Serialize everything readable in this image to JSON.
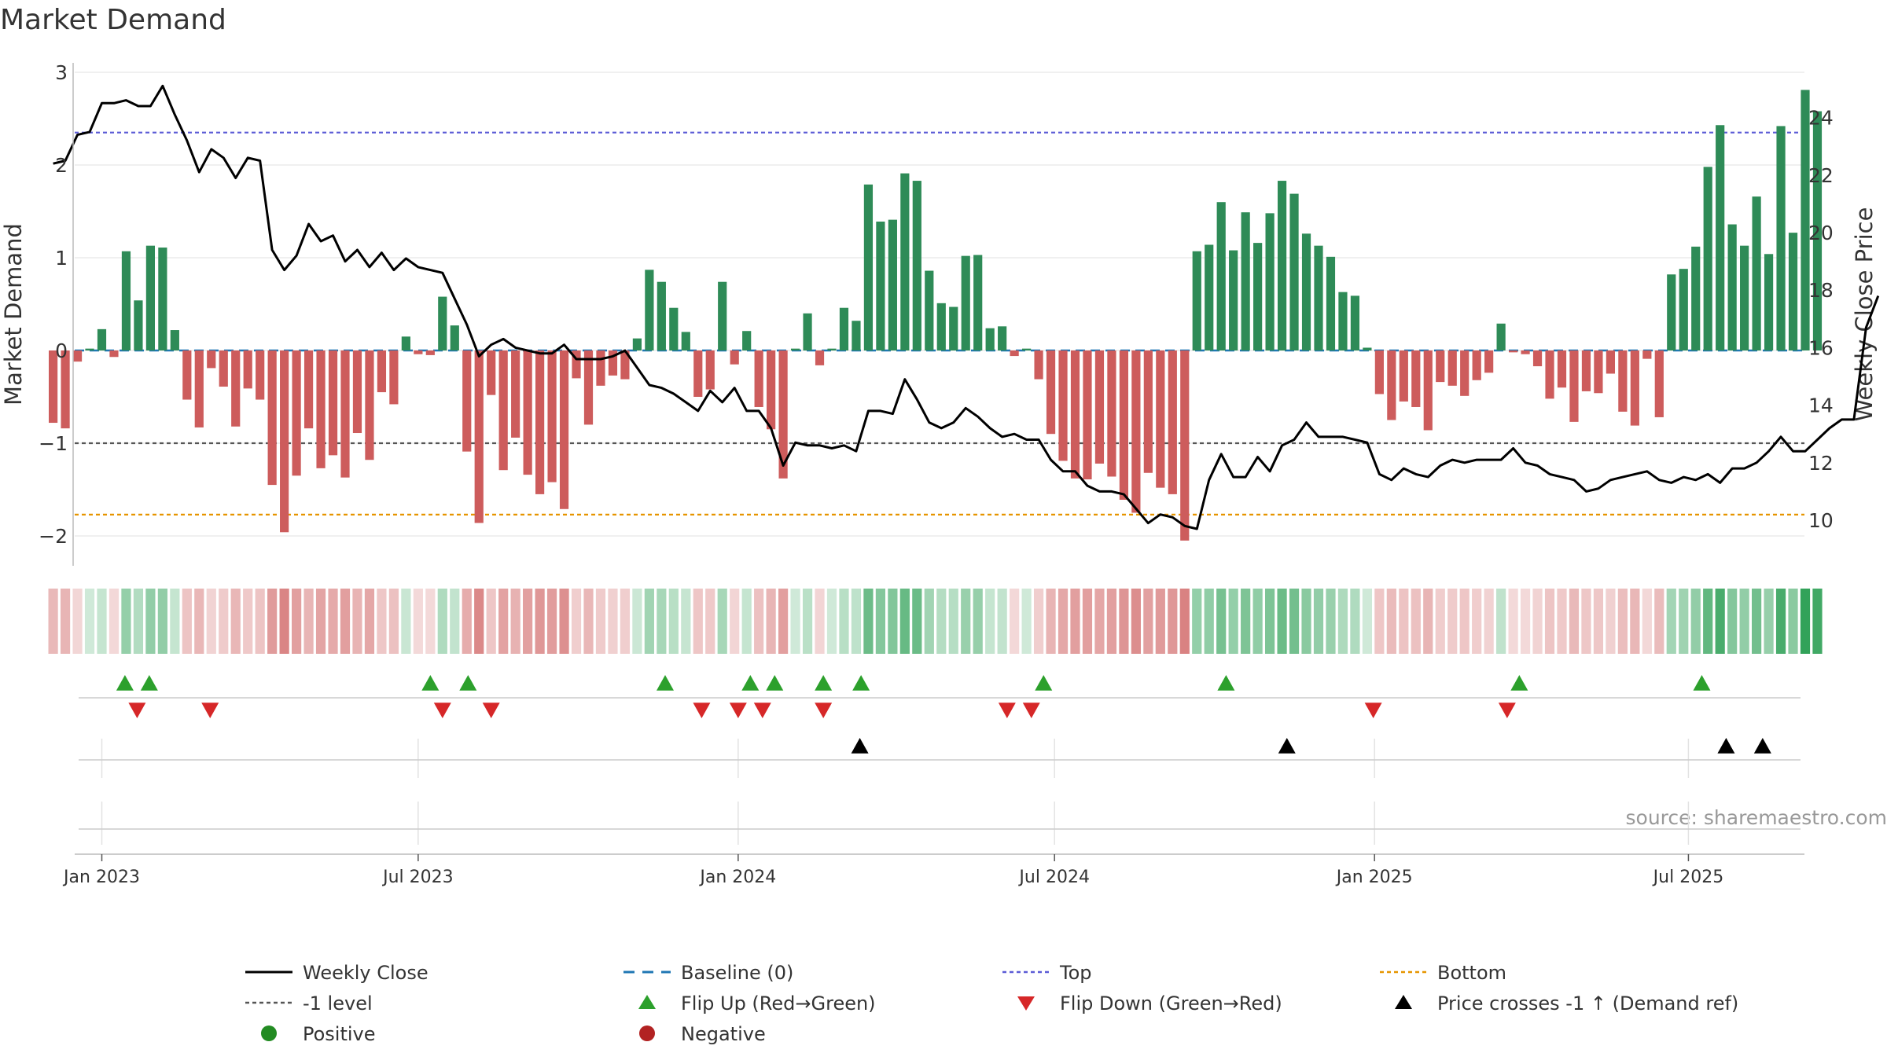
{
  "chart_data": {
    "type": "bar",
    "title": "Market Demand",
    "ylabel": "Market Demand",
    "y2label": "Weekly Close Price",
    "ylim": [
      -2.3,
      3.05
    ],
    "y2lim": [
      9.2,
      25.4
    ],
    "yticks": [
      3,
      2,
      1,
      0,
      -1,
      -2
    ],
    "y2ticks": [
      10,
      12,
      14,
      16,
      18,
      20,
      22,
      24
    ],
    "xticks": [
      {
        "label": "Jan 2023",
        "week": 0
      },
      {
        "label": "Jul 2023",
        "week": 26
      },
      {
        "label": "Jan 2024",
        "week": 52.3
      },
      {
        "label": "Jul 2024",
        "week": 78.3
      },
      {
        "label": "Jan 2025",
        "week": 104.6
      },
      {
        "label": "Jul 2025",
        "week": 130.4
      }
    ],
    "week_range": [
      -2.2,
      142.3
    ],
    "levels": {
      "top": 2.35,
      "minus_one": -1.0,
      "bottom": -1.77,
      "baseline": 0
    },
    "colors": {
      "positive": "#2e8b57",
      "negative": "#cd5c5c",
      "close": "#000000",
      "top": "#5b5bd6",
      "bottom": "#e69500",
      "minus_one": "#555555",
      "baseline": "#1f77b4",
      "flip_up": "#2ca02c",
      "flip_down": "#d62728"
    },
    "series": [
      {
        "name": "Market Demand",
        "values": [
          -0.78,
          -0.84,
          -0.12,
          0.02,
          0.23,
          -0.07,
          1.07,
          0.54,
          1.13,
          1.11,
          0.22,
          -0.53,
          -0.83,
          -0.19,
          -0.39,
          -0.82,
          -0.41,
          -0.53,
          -1.45,
          -1.96,
          -1.35,
          -0.84,
          -1.27,
          -1.13,
          -1.37,
          -0.89,
          -1.18,
          -0.45,
          -0.58,
          0.15,
          -0.04,
          -0.05,
          0.58,
          0.27,
          -1.09,
          -1.86,
          -0.48,
          -1.29,
          -0.94,
          -1.34,
          -1.55,
          -1.42,
          -1.71,
          -0.3,
          -0.8,
          -0.38,
          -0.27,
          -0.31,
          0.13,
          0.87,
          0.74,
          0.46,
          0.2,
          -0.5,
          -0.42,
          0.74,
          -0.15,
          0.21,
          -0.61,
          -0.85,
          -1.38,
          0.02,
          0.4,
          -0.16,
          0.02,
          0.46,
          0.32,
          1.79,
          1.39,
          1.41,
          1.91,
          1.83,
          0.86,
          0.51,
          0.47,
          1.02,
          1.03,
          0.24,
          0.26,
          -0.06,
          0.02,
          -0.31,
          -0.9,
          -1.19,
          -1.38,
          -1.39,
          -1.22,
          -1.36,
          -1.61,
          -1.75,
          -1.32,
          -1.48,
          -1.55,
          -2.05,
          1.07,
          1.14,
          1.6,
          1.08,
          1.49,
          1.16,
          1.48,
          1.83,
          1.69,
          1.26,
          1.13,
          1.01,
          0.63,
          0.59,
          0.03,
          -0.47,
          -0.75,
          -0.55,
          -0.61,
          -0.86,
          -0.34,
          -0.38,
          -0.49,
          -0.32,
          -0.24,
          0.29,
          -0.02,
          -0.04,
          -0.17,
          -0.52,
          -0.4,
          -0.77,
          -0.44,
          -0.46,
          -0.25,
          -0.66,
          -0.81,
          -0.09,
          -0.72,
          0.82,
          0.88,
          1.12,
          1.98,
          2.43,
          1.36,
          1.13,
          1.66,
          1.04,
          2.42,
          1.27,
          2.81,
          2.58
        ]
      },
      {
        "name": "Weekly Close",
        "values": [
          22.4,
          22.5,
          23.4,
          23.5,
          24.5,
          24.5,
          24.6,
          24.4,
          24.4,
          25.1,
          24.1,
          23.2,
          22.1,
          22.9,
          22.6,
          21.9,
          22.6,
          22.5,
          19.4,
          18.7,
          19.2,
          20.3,
          19.7,
          19.9,
          19.0,
          19.4,
          18.8,
          19.3,
          18.7,
          19.1,
          18.8,
          18.7,
          18.6,
          17.7,
          16.8,
          15.7,
          16.1,
          16.3,
          16.0,
          15.9,
          15.8,
          15.8,
          16.1,
          15.6,
          15.6,
          15.6,
          15.7,
          15.9,
          15.3,
          14.7,
          14.6,
          14.4,
          14.1,
          13.8,
          14.5,
          14.1,
          14.6,
          13.8,
          13.8,
          13.2,
          11.9,
          12.7,
          12.6,
          12.6,
          12.5,
          12.6,
          12.4,
          13.8,
          13.8,
          13.7,
          14.9,
          14.2,
          13.4,
          13.2,
          13.4,
          13.9,
          13.6,
          13.2,
          12.9,
          13.0,
          12.8,
          12.8,
          12.1,
          11.7,
          11.7,
          11.2,
          11.0,
          11.0,
          10.9,
          10.4,
          9.9,
          10.2,
          10.1,
          9.8,
          9.7,
          11.4,
          12.3,
          11.5,
          11.5,
          12.2,
          11.7,
          12.6,
          12.8,
          13.4,
          12.9,
          12.9,
          12.9,
          12.8,
          12.7,
          11.6,
          11.4,
          11.8,
          11.6,
          11.5,
          11.9,
          12.1,
          12.0,
          12.1,
          12.1,
          12.1,
          12.5,
          12.0,
          11.9,
          11.6,
          11.5,
          11.4,
          11.0,
          11.1,
          11.4,
          11.5,
          11.6,
          11.7,
          11.4,
          11.3,
          11.5,
          11.4,
          11.6,
          11.3,
          11.8,
          11.8,
          12.0,
          12.4,
          12.9,
          12.4,
          12.4,
          12.8,
          13.2,
          13.5,
          13.5,
          16.7,
          17.8
        ]
      }
    ],
    "flip_up_weeks": [
      1.9,
      3.9,
      27.0,
      30.1,
      46.3,
      53.3,
      55.3,
      59.3,
      62.4,
      77.4,
      92.4,
      116.5,
      131.5
    ],
    "flip_down_weeks": [
      2.9,
      8.9,
      28.0,
      32.0,
      49.3,
      52.3,
      54.3,
      59.3,
      74.4,
      76.4,
      104.5,
      115.5
    ],
    "price_cross_weeks": [
      62.3,
      97.4,
      133.5,
      136.5
    ],
    "legend": [
      {
        "label": "Weekly Close",
        "symbol": "line-solid",
        "color": "#000000"
      },
      {
        "label": "Baseline (0)",
        "symbol": "line-dashed",
        "color": "#1f77b4"
      },
      {
        "label": "Top",
        "symbol": "line-dotted",
        "color": "#5b5bd6"
      },
      {
        "label": "Bottom",
        "symbol": "line-dotted",
        "color": "#e69500"
      },
      {
        "label": "-1 level",
        "symbol": "line-dotted",
        "color": "#555555"
      },
      {
        "label": "Flip Up (Red→Green)",
        "symbol": "triangle-up",
        "color": "#2ca02c"
      },
      {
        "label": "Flip Down (Green→Red)",
        "symbol": "triangle-down",
        "color": "#d62728"
      },
      {
        "label": "Price crosses -1 ↑ (Demand ref)",
        "symbol": "triangle-up",
        "color": "#000000"
      },
      {
        "label": "Positive",
        "symbol": "dot",
        "color": "#228b22"
      },
      {
        "label": "Negative",
        "symbol": "dot",
        "color": "#b22222"
      }
    ],
    "annotation": "source: sharemaestro.com"
  }
}
